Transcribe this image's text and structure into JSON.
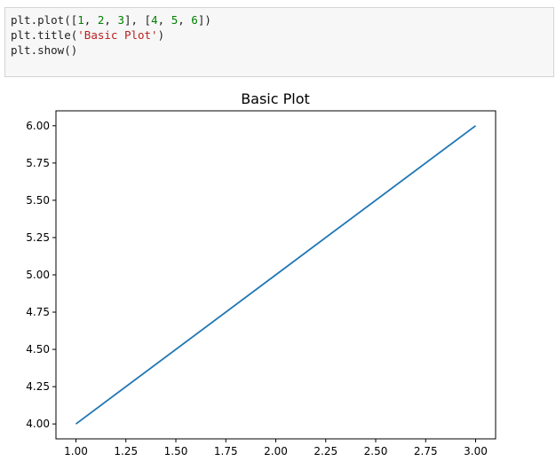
{
  "code_cell": {
    "lines": [
      [
        {
          "t": "plt.plot([",
          "c": "plain"
        },
        {
          "t": "1",
          "c": "num"
        },
        {
          "t": ", ",
          "c": "plain"
        },
        {
          "t": "2",
          "c": "num"
        },
        {
          "t": ", ",
          "c": "plain"
        },
        {
          "t": "3",
          "c": "num"
        },
        {
          "t": "], [",
          "c": "plain"
        },
        {
          "t": "4",
          "c": "num"
        },
        {
          "t": ", ",
          "c": "plain"
        },
        {
          "t": "5",
          "c": "num"
        },
        {
          "t": ", ",
          "c": "plain"
        },
        {
          "t": "6",
          "c": "num"
        },
        {
          "t": "])",
          "c": "plain"
        }
      ],
      [
        {
          "t": "plt.title(",
          "c": "plain"
        },
        {
          "t": "'Basic Plot'",
          "c": "str"
        },
        {
          "t": ")",
          "c": "plain"
        }
      ],
      [
        {
          "t": "plt.show()",
          "c": "plain"
        }
      ]
    ]
  },
  "chart_data": {
    "type": "line",
    "title": "Basic Plot",
    "xlabel": "",
    "ylabel": "",
    "x": [
      1,
      2,
      3
    ],
    "series": [
      {
        "values": [
          4,
          5,
          6
        ],
        "color": "#1f77b4"
      }
    ],
    "xlim": [
      0.9,
      3.1
    ],
    "ylim": [
      3.9,
      6.1
    ],
    "xticks": [
      "1.00",
      "1.25",
      "1.50",
      "1.75",
      "2.00",
      "2.25",
      "2.50",
      "2.75",
      "3.00"
    ],
    "yticks": [
      "4.00",
      "4.25",
      "4.50",
      "4.75",
      "5.00",
      "5.25",
      "5.50",
      "5.75",
      "6.00"
    ],
    "grid": false
  }
}
